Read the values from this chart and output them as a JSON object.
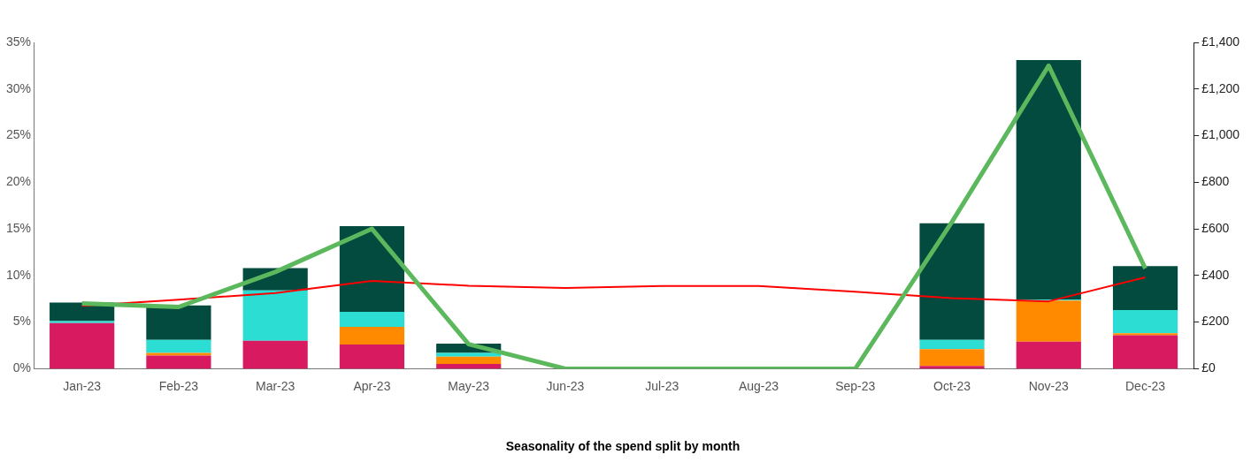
{
  "chart_data": {
    "type": "bar",
    "stacked": true,
    "xlabel": "Seasonality of the spend split by month",
    "categories": [
      "Jan-23",
      "Feb-23",
      "Mar-23",
      "Apr-23",
      "May-23",
      "Jun-23",
      "Jul-23",
      "Aug-23",
      "Sep-23",
      "Oct-23",
      "Nov-23",
      "Dec-23"
    ],
    "ylim": [
      0,
      35
    ],
    "yticks": [
      {
        "value": 0,
        "label": "0%"
      },
      {
        "value": 5,
        "label": "5%"
      },
      {
        "value": 10,
        "label": "10%"
      },
      {
        "value": 15,
        "label": "15%"
      },
      {
        "value": 20,
        "label": "20%"
      },
      {
        "value": 25,
        "label": "25%"
      },
      {
        "value": 30,
        "label": "30%"
      },
      {
        "value": 35,
        "label": "35%"
      }
    ],
    "y2lim": [
      0,
      1400
    ],
    "y2ticks": [
      {
        "value": 0,
        "label": "£0"
      },
      {
        "value": 200,
        "label": "£200"
      },
      {
        "value": 400,
        "label": "£400"
      },
      {
        "value": 600,
        "label": "£600"
      },
      {
        "value": 800,
        "label": "£800"
      },
      {
        "value": 1000,
        "label": "£1,000"
      },
      {
        "value": 1200,
        "label": "£1,200"
      },
      {
        "value": 1400,
        "label": "£1,400"
      }
    ],
    "grid": false,
    "legend": false,
    "series": [
      {
        "color": "#d81b60",
        "values": [
          4.9,
          1.4,
          3.0,
          2.6,
          0.5,
          0,
          0,
          0,
          0,
          0.3,
          2.9,
          3.6
        ]
      },
      {
        "color": "#ff8a00",
        "values": [
          0,
          0.3,
          0,
          1.9,
          0.8,
          0,
          0,
          0,
          0,
          1.8,
          4.4,
          0.2
        ]
      },
      {
        "color": "#2bddd3",
        "values": [
          0.2,
          1.4,
          5.4,
          1.6,
          0.4,
          0,
          0,
          0,
          0,
          1.0,
          0.1,
          2.5
        ]
      },
      {
        "color": "#024b3e",
        "values": [
          2.0,
          3.7,
          2.4,
          9.2,
          1.0,
          0,
          0,
          0,
          0,
          12.5,
          25.7,
          4.7
        ]
      },
      {
        "type": "line",
        "axis": "y2",
        "color": "#5cb85c",
        "values": [
          280,
          265,
          415,
          600,
          105,
          0,
          0,
          0,
          0,
          630,
          1300,
          430
        ]
      },
      {
        "type": "line",
        "axis": "y2",
        "color": "#ff0000",
        "values": [
          270,
          296,
          325,
          377,
          356,
          346,
          355,
          355,
          330,
          303,
          289,
          392
        ]
      }
    ]
  }
}
